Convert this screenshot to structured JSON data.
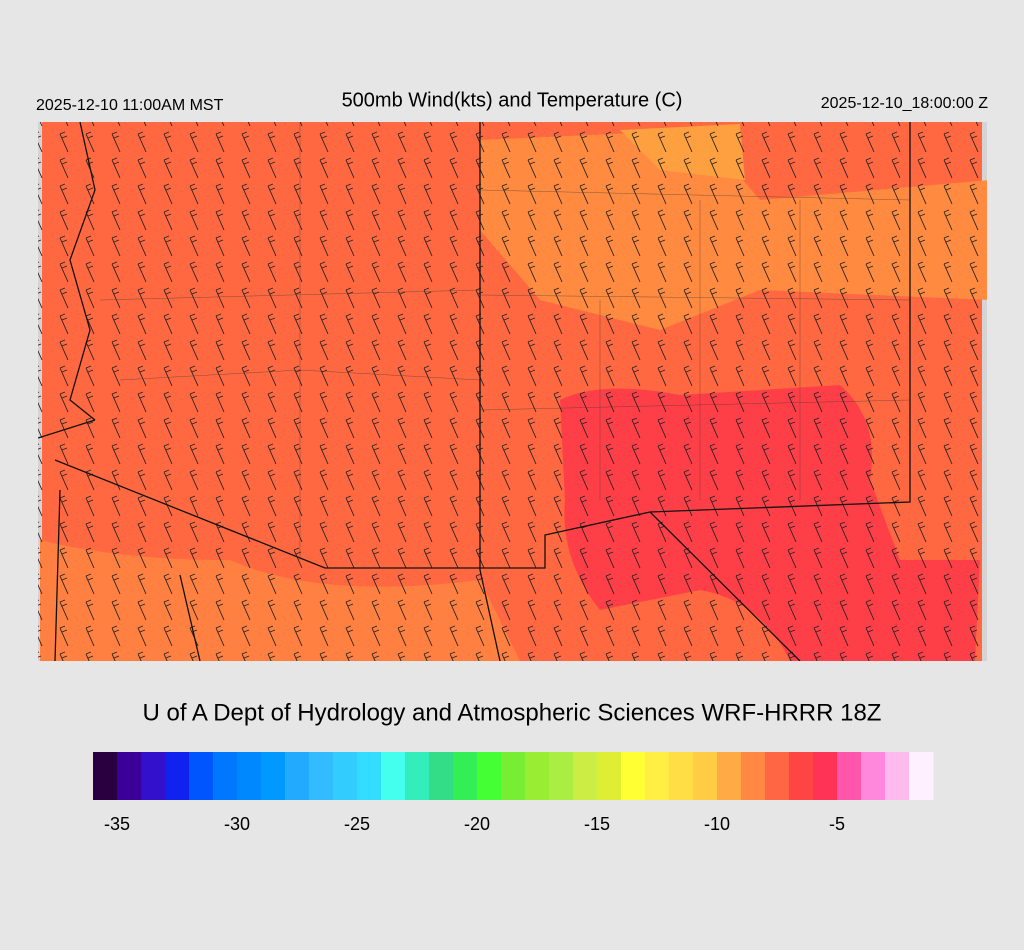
{
  "header": {
    "title": "500mb Wind(kts) and Temperature (C)",
    "local_time": "2025-12-10 11:00AM MST",
    "valid_time": "2025-12-10_18:00:00 Z"
  },
  "credit": "U of A Dept of Hydrology and Atmospheric Sciences WRF-HRRR 18Z",
  "colorbar": {
    "lim": [
      -36,
      -1
    ],
    "ticks": [
      -35,
      -30,
      -25,
      -20,
      -15,
      -10,
      -5
    ],
    "colors": [
      "#2b0040",
      "#3a0099",
      "#3311cc",
      "#1122ee",
      "#0055ff",
      "#0077ff",
      "#0088ff",
      "#0099ff",
      "#22aaff",
      "#33bbff",
      "#33ccff",
      "#33ddff",
      "#44ffee",
      "#33eebb",
      "#33dd88",
      "#33ee55",
      "#44ff33",
      "#77ee33",
      "#99ee33",
      "#aaee44",
      "#ccee44",
      "#ddee33",
      "#ffff33",
      "#ffee44",
      "#ffdd44",
      "#ffcc44",
      "#ffaa44",
      "#ff8844",
      "#ff6644",
      "#ff4444",
      "#ff3355",
      "#ff55aa",
      "#ff88dd",
      "#ffbbee",
      "#fff0ff"
    ]
  }
}
